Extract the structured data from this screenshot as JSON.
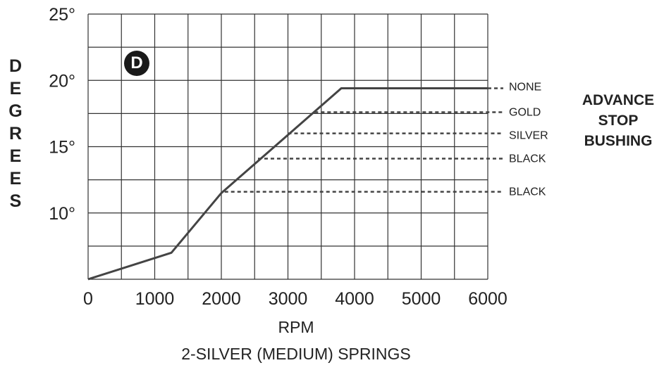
{
  "chart_data": {
    "type": "line",
    "badge": "D",
    "ylabel": "DEGREES",
    "xlabel": "RPM",
    "subtitle": "2-SILVER (MEDIUM) SPRINGS",
    "x_ticks": [
      "0",
      "1000",
      "2000",
      "3000",
      "4000",
      "5000",
      "6000"
    ],
    "y_ticks": [
      {
        "value": 10,
        "label": "10°"
      },
      {
        "value": 15,
        "label": "15°"
      },
      {
        "value": 20,
        "label": "20°"
      },
      {
        "value": 25,
        "label": "25°"
      }
    ],
    "xlim": [
      0,
      6000
    ],
    "ylim": [
      5,
      25
    ],
    "grid": true,
    "grid_x_step": 500,
    "grid_y_step": 2.5,
    "advance_stop_title": [
      "ADVANCE",
      "STOP",
      "BUSHING"
    ],
    "series": [
      {
        "name": "NONE",
        "style": "solid",
        "points": [
          [
            0,
            5
          ],
          [
            1250,
            7
          ],
          [
            2000,
            11.5
          ],
          [
            3800,
            19.4
          ],
          [
            6000,
            19.4
          ]
        ]
      },
      {
        "name": "GOLD",
        "style": "dashed",
        "y": 17.6,
        "x_start": 3400,
        "x_end": 6000
      },
      {
        "name": "SILVER",
        "style": "dashed",
        "y": 16.0,
        "x_start": 3000,
        "x_end": 6000
      },
      {
        "name": "BLACK",
        "style": "dashed",
        "y": 14.1,
        "x_start": 2550,
        "x_end": 6000
      },
      {
        "name": "BLACK",
        "style": "dashed",
        "y": 11.6,
        "x_start": 2050,
        "x_end": 6000
      }
    ],
    "colors": {
      "line": "#444444",
      "grid": "#333333",
      "text": "#222222"
    }
  }
}
